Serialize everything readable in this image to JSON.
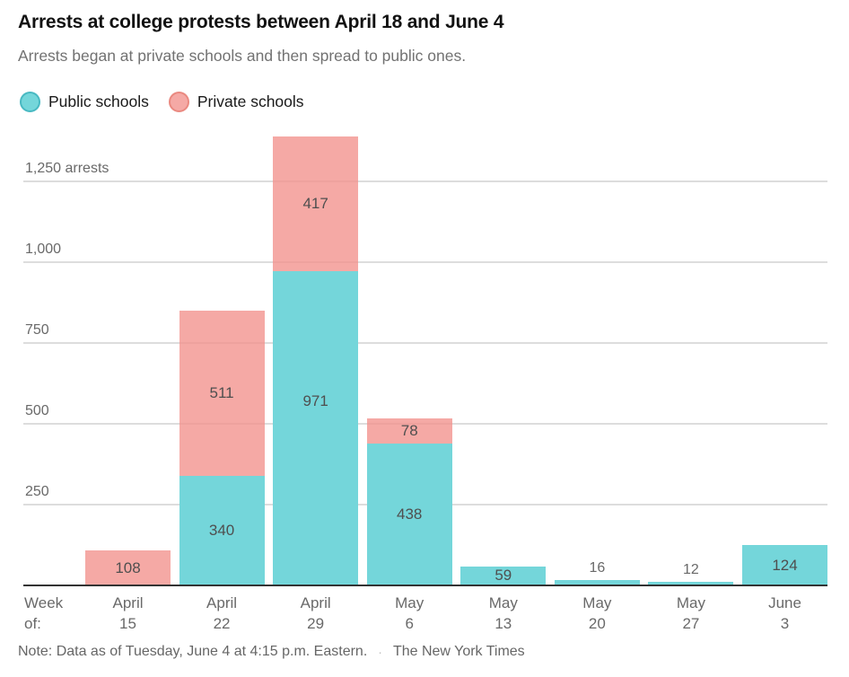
{
  "header": {
    "title": "Arrests at college protests between April 18 and June 4",
    "subtitle": "Arrests began at private schools and then spread to public ones."
  },
  "legend": {
    "items": [
      {
        "label": "Public schools",
        "series": "public"
      },
      {
        "label": "Private schools",
        "series": "private"
      }
    ]
  },
  "colors": {
    "public_fill": "#74d6da",
    "public_stroke": "#48b9c2",
    "private_fill_rgba": "rgba(243,148,143,0.8)",
    "private_fill_hex": "#f5a9a5",
    "private_stroke": "#ea8980",
    "gridline": "#dddddd",
    "axis_line": "#333333"
  },
  "chart_data": {
    "type": "bar",
    "stacked": true,
    "title": "Arrests at college protests between April 18 and June 4",
    "xlabel": "Week of:",
    "ylabel": "arrests",
    "x_axis_prefix": [
      "Week",
      "of:"
    ],
    "categories": [
      [
        "April",
        "15"
      ],
      [
        "April",
        "22"
      ],
      [
        "April",
        "29"
      ],
      [
        "May",
        "6"
      ],
      [
        "May",
        "13"
      ],
      [
        "May",
        "20"
      ],
      [
        "May",
        "27"
      ],
      [
        "June",
        "3"
      ]
    ],
    "series": [
      {
        "name": "Public schools",
        "key": "public",
        "values": [
          0,
          340,
          971,
          438,
          59,
          16,
          12,
          124
        ]
      },
      {
        "name": "Private schools",
        "key": "private",
        "values": [
          108,
          511,
          417,
          78,
          0,
          0,
          0,
          0
        ]
      }
    ],
    "totals": [
      108,
      851,
      1388,
      516,
      59,
      16,
      12,
      124
    ],
    "y_ticks": [
      {
        "value": 250,
        "label": "250"
      },
      {
        "value": 500,
        "label": "500"
      },
      {
        "value": 750,
        "label": "750"
      },
      {
        "value": 1000,
        "label": "1,000"
      },
      {
        "value": 1250,
        "label": "1,250 arrests"
      }
    ],
    "ylim": [
      0,
      1400
    ],
    "grid": true,
    "legend_position": "top-left"
  },
  "note": {
    "text": "Note: Data as of Tuesday, June 4 at 4:15 p.m. Eastern.",
    "separator": "·",
    "credit": "The New York Times"
  }
}
